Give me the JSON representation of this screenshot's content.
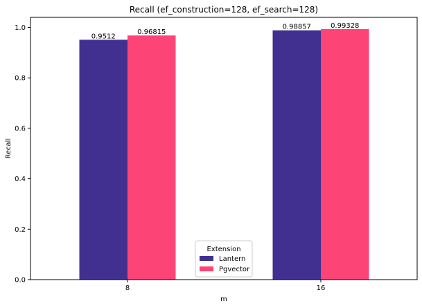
{
  "chart_data": {
    "type": "bar",
    "title": "Recall (ef_construction=128, ef_search=128)",
    "xlabel": "m",
    "ylabel": "Recall",
    "categories": [
      "8",
      "16"
    ],
    "ylim": [
      0,
      1.04
    ],
    "yticks": [
      0.0,
      0.2,
      0.4,
      0.6,
      0.8,
      1.0
    ],
    "ytick_labels": [
      "0.0",
      "0.2",
      "0.4",
      "0.6",
      "0.8",
      "1.0"
    ],
    "series": [
      {
        "name": "Lantern",
        "color": "#41308f",
        "values": [
          0.9512,
          0.98857
        ],
        "labels": [
          "0.9512",
          "0.98857"
        ]
      },
      {
        "name": "Pgvector",
        "color": "#fd4477",
        "values": [
          0.96815,
          0.99328
        ],
        "labels": [
          "0.96815",
          "0.99328"
        ]
      }
    ],
    "legend": {
      "title": "Extension",
      "placement": "lower center"
    },
    "grid": false
  }
}
